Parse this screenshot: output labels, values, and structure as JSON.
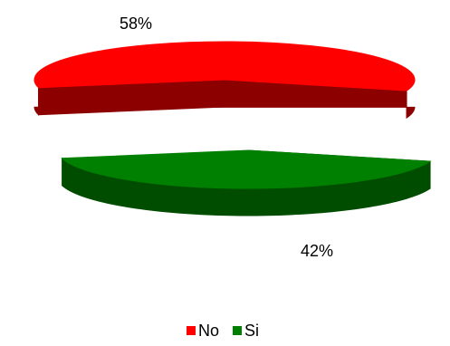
{
  "chart_data": {
    "type": "pie",
    "style": "3d-exploded",
    "slices": [
      {
        "label": "No",
        "value": 58,
        "value_label": "58%",
        "color": "#ff0000",
        "side_color": "#8c0000"
      },
      {
        "label": "Si",
        "value": 42,
        "value_label": "42%",
        "color": "#008000",
        "side_color": "#004d00"
      }
    ],
    "legend": {
      "placement": "bottom",
      "entries": [
        {
          "label": "No",
          "color": "#ff0000"
        },
        {
          "label": "Si",
          "color": "#008000"
        }
      ]
    }
  }
}
